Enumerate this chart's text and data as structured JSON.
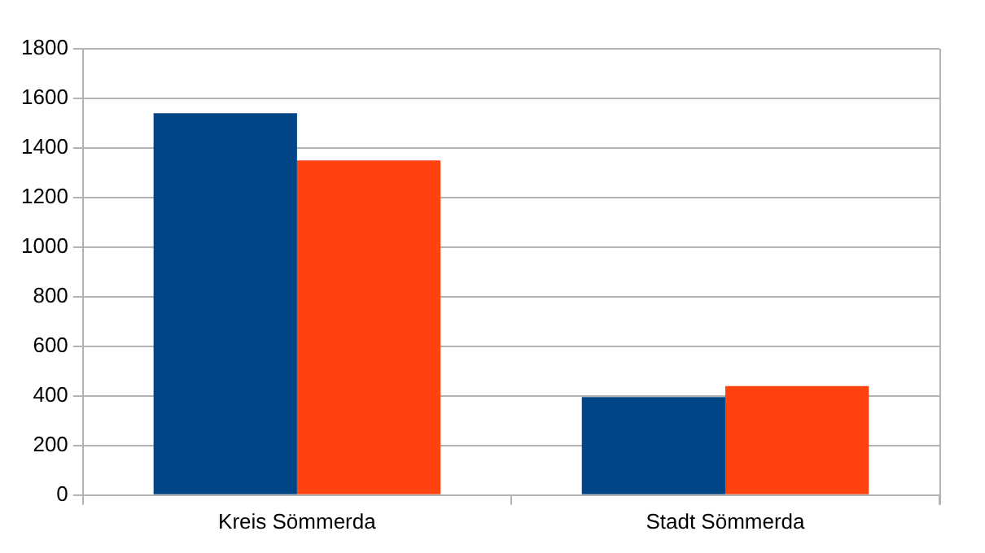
{
  "chart_data": {
    "type": "bar",
    "categories": [
      "Kreis Sömmerda",
      "Stadt Sömmerda"
    ],
    "series": [
      {
        "color": "#004586",
        "values": [
          1540,
          395
        ]
      },
      {
        "color": "#ff420e",
        "values": [
          1350,
          440
        ]
      }
    ],
    "ylim": [
      0,
      1800
    ],
    "yticks": [
      0,
      200,
      400,
      600,
      800,
      1000,
      1200,
      1400,
      1600,
      1800
    ],
    "grid": "y",
    "legend": false
  }
}
